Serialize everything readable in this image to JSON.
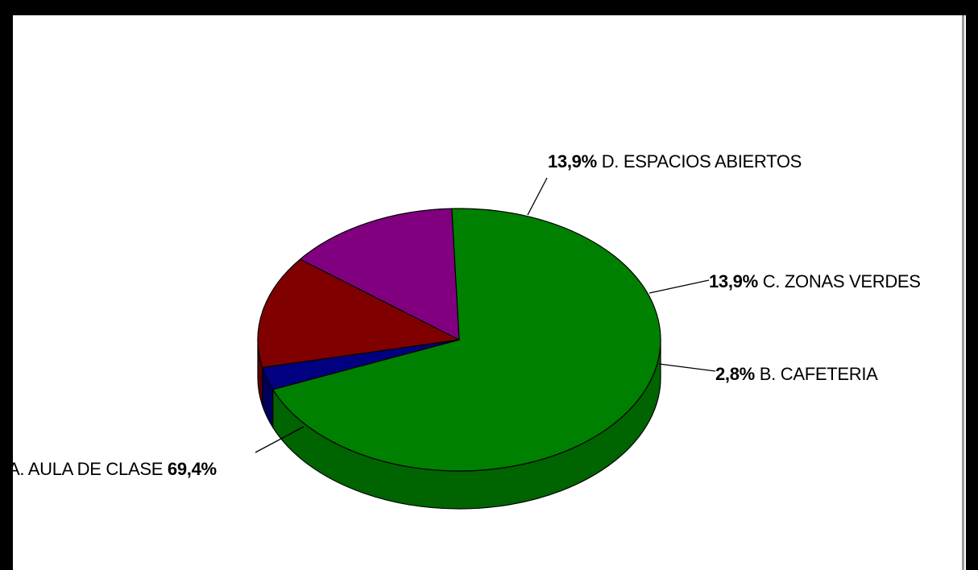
{
  "chart_data": {
    "type": "pie",
    "style": "3d",
    "title": "",
    "slices": [
      {
        "letter": "A",
        "label": "A. AULA DE CLASE",
        "pct_text": "69,4%",
        "value": 69.4,
        "color": "#008000",
        "side_color": "#006400"
      },
      {
        "letter": "B",
        "label": "B. CAFETERIA",
        "pct_text": "2,8%",
        "value": 2.8,
        "color": "#000080",
        "side_color": "#00005a"
      },
      {
        "letter": "C",
        "label": "C. ZONAS VERDES",
        "pct_text": "13,9%",
        "value": 13.9,
        "color": "#800000",
        "side_color": "#5a0000"
      },
      {
        "letter": "D",
        "label": "D. ESPACIOS ABIERTOS",
        "pct_text": "13,9%",
        "value": 13.9,
        "color": "#800080",
        "side_color": "#5a005a"
      }
    ],
    "labels": [
      {
        "slice": "D",
        "pct": "13,9%",
        "text": " D. ESPACIOS ABIERTOS",
        "pct_first": true
      },
      {
        "slice": "C",
        "pct": "13,9%",
        "text": " C. ZONAS VERDES",
        "pct_first": true
      },
      {
        "slice": "B",
        "pct": "2,8%",
        "text": " B. CAFETERIA",
        "pct_first": true
      },
      {
        "slice": "A",
        "pct": "69,4%",
        "text": "A. AULA DE CLASE ",
        "pct_first": false
      }
    ]
  }
}
